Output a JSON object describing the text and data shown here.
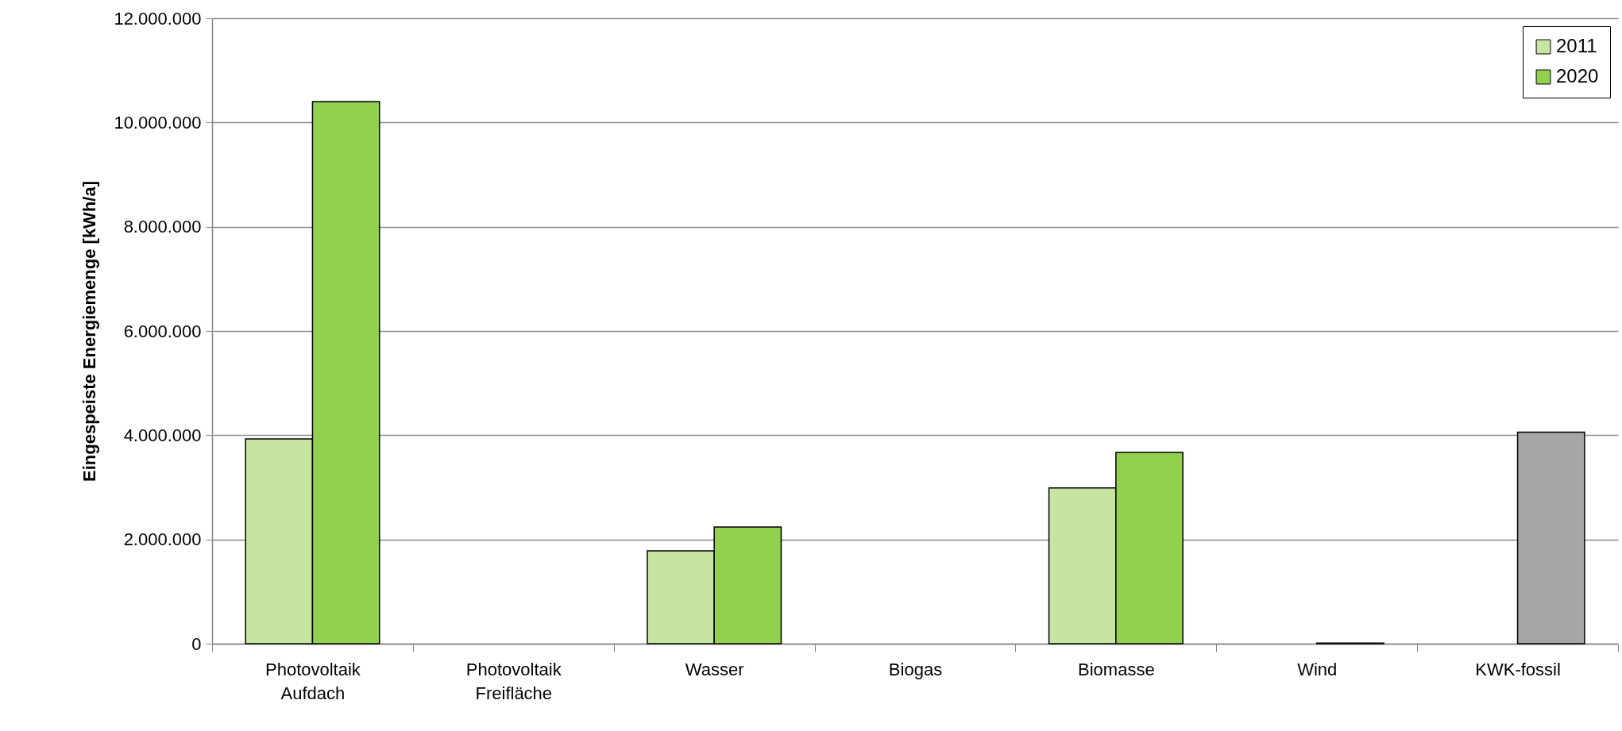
{
  "chart_data": {
    "type": "bar",
    "ylabel": "Eingespeiste Energiemenge [kWh/a]",
    "categories": [
      "Photovoltaik Aufdach",
      "Photovoltaik Freifläche",
      "Wasser",
      "Biogas",
      "Biomasse",
      "Wind",
      "KWK-fossil"
    ],
    "series": [
      {
        "name": "2011",
        "color": "#c6e5a2",
        "values": [
          3930000,
          null,
          1780000,
          null,
          2990000,
          null,
          null
        ]
      },
      {
        "name": "2020",
        "color": "#92d050",
        "colors": [
          "#92d050",
          "#92d050",
          "#92d050",
          "#92d050",
          "#92d050",
          "#a6a6a6",
          "#a6a6a6"
        ],
        "values": [
          10400000,
          null,
          2240000,
          null,
          3670000,
          10000,
          4060000
        ]
      }
    ],
    "ylim": [
      0,
      12000000
    ],
    "yticks": [
      0,
      {
        "value": 2000000,
        "label": "2.000.000"
      },
      {
        "value": 4000000,
        "label": "4.000.000"
      },
      {
        "value": 6000000,
        "label": "6.000.000"
      },
      {
        "value": 8000000,
        "label": "8.000.000"
      },
      {
        "value": 10000000,
        "label": "10.000.000"
      },
      {
        "value": 12000000,
        "label": "12.000.000"
      }
    ],
    "grid": "y",
    "legend": "top right"
  }
}
